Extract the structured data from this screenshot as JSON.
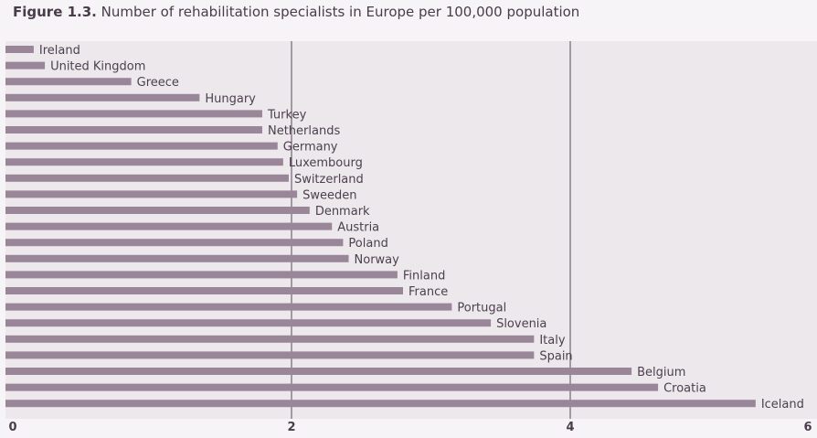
{
  "title": {
    "prefix": "Figure 1.3.",
    "text": "Number of rehabilitation specialists in Europe per 100,000 population"
  },
  "colors": {
    "bar": "#9a8699",
    "background": "#ece8ec",
    "gridline": "#5a4a5a",
    "text": "#4d3f4d"
  },
  "chart_data": {
    "type": "bar",
    "orientation": "horizontal",
    "title": "Number of rehabilitation specialists in Europe per 100,000 population",
    "xlabel": "",
    "ylabel": "",
    "xlim": [
      0,
      6
    ],
    "xticks": [
      0,
      2,
      4,
      6
    ],
    "grid": "vertical at 2 and 4",
    "categories": [
      "Ireland",
      "United Kingdom",
      "Greece",
      "Hungary",
      "Turkey",
      "Netherlands",
      "Germany",
      "Luxembourg",
      "Switzerland",
      "Sweeden",
      "Denmark",
      "Austria",
      "Poland",
      "Norway",
      "Finland",
      "France",
      "Portugal",
      "Slovenia",
      "Italy",
      "Spain",
      "Belgium",
      "Croatia",
      "Iceland"
    ],
    "values": [
      0.15,
      0.23,
      0.85,
      1.34,
      1.79,
      1.79,
      1.9,
      1.94,
      1.98,
      2.04,
      2.13,
      2.29,
      2.37,
      2.41,
      2.76,
      2.8,
      3.15,
      3.43,
      3.74,
      3.74,
      4.44,
      4.63,
      5.33
    ]
  }
}
